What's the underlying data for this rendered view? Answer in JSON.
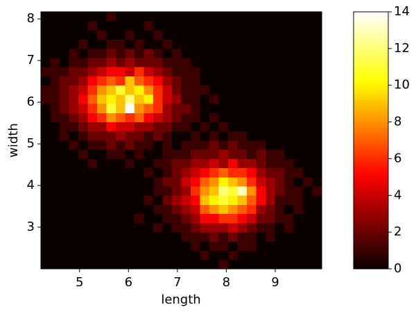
{
  "chart_data": {
    "type": "hist2d",
    "x_label": "length",
    "y_label": "width",
    "xlim": [
      4.21,
      9.95
    ],
    "ylim": [
      2.0,
      8.17
    ],
    "xticks": [
      5,
      6,
      7,
      8,
      9
    ],
    "yticks": [
      3,
      4,
      5,
      6,
      7,
      8
    ],
    "colormap": "hot",
    "colorbar": {
      "lim": [
        0,
        14
      ],
      "ticks": [
        0,
        2,
        4,
        6,
        8,
        10,
        12,
        14
      ]
    },
    "values": [
      [
        0,
        0,
        0,
        0,
        0,
        0,
        0,
        0,
        0,
        0,
        0,
        0,
        0,
        0,
        0,
        0,
        0,
        0,
        0,
        1,
        0,
        0,
        0,
        0,
        0,
        0,
        0,
        0,
        0,
        0
      ],
      [
        0,
        0,
        0,
        0,
        0,
        0,
        0,
        0,
        0,
        0,
        0,
        0,
        0,
        0,
        0,
        0,
        0,
        1,
        0,
        0,
        1,
        0,
        0,
        0,
        0,
        0,
        0,
        0,
        0,
        0
      ],
      [
        0,
        0,
        0,
        0,
        0,
        0,
        0,
        0,
        0,
        0,
        0,
        0,
        0,
        0,
        0,
        0,
        1,
        0,
        1,
        1,
        0,
        1,
        1,
        0,
        0,
        0,
        0,
        0,
        0,
        0
      ],
      [
        0,
        0,
        0,
        0,
        0,
        0,
        0,
        0,
        0,
        0,
        0,
        0,
        0,
        0,
        0,
        1,
        1,
        1,
        2,
        1,
        2,
        1,
        1,
        0,
        1,
        0,
        0,
        0,
        0,
        0
      ],
      [
        0,
        0,
        0,
        0,
        0,
        0,
        0,
        0,
        0,
        0,
        0,
        0,
        1,
        0,
        1,
        1,
        2,
        3,
        3,
        3,
        4,
        3,
        2,
        1,
        1,
        0,
        1,
        0,
        0,
        0
      ],
      [
        0,
        0,
        0,
        0,
        0,
        0,
        0,
        0,
        0,
        0,
        1,
        0,
        0,
        1,
        1,
        2,
        3,
        5,
        5,
        6,
        6,
        5,
        4,
        2,
        2,
        1,
        1,
        0,
        0,
        0
      ],
      [
        0,
        0,
        0,
        0,
        0,
        0,
        0,
        0,
        0,
        0,
        0,
        0,
        1,
        1,
        2,
        3,
        4,
        7,
        8,
        9,
        8,
        7,
        6,
        3,
        2,
        1,
        0,
        1,
        0,
        0
      ],
      [
        0,
        0,
        0,
        0,
        0,
        0,
        0,
        0,
        0,
        0,
        0,
        1,
        0,
        2,
        3,
        4,
        5,
        9,
        10,
        11,
        10,
        9,
        7,
        5,
        3,
        1,
        1,
        1,
        0,
        0
      ],
      [
        0,
        0,
        0,
        0,
        0,
        0,
        0,
        0,
        0,
        0,
        0,
        0,
        1,
        1,
        2,
        3,
        6,
        8,
        9,
        12,
        11,
        13,
        8,
        5,
        3,
        2,
        1,
        1,
        0,
        1
      ],
      [
        0,
        0,
        0,
        0,
        0,
        0,
        0,
        0,
        0,
        0,
        0,
        0,
        1,
        2,
        2,
        4,
        5,
        7,
        8,
        10,
        9,
        8,
        6,
        4,
        3,
        2,
        1,
        0,
        1,
        0
      ],
      [
        0,
        0,
        0,
        0,
        0,
        0,
        0,
        0,
        0,
        0,
        0,
        1,
        0,
        1,
        2,
        3,
        4,
        5,
        6,
        7,
        6,
        6,
        5,
        3,
        2,
        2,
        1,
        1,
        0,
        0
      ],
      [
        0,
        0,
        0,
        0,
        0,
        1,
        0,
        0,
        0,
        1,
        0,
        0,
        1,
        1,
        2,
        2,
        3,
        3,
        4,
        3,
        5,
        3,
        3,
        2,
        1,
        1,
        1,
        0,
        0,
        0
      ],
      [
        0,
        0,
        0,
        0,
        1,
        0,
        0,
        1,
        1,
        0,
        1,
        0,
        0,
        1,
        1,
        1,
        2,
        2,
        2,
        3,
        2,
        2,
        1,
        2,
        1,
        1,
        0,
        0,
        0,
        0
      ],
      [
        0,
        0,
        0,
        1,
        0,
        1,
        1,
        2,
        1,
        2,
        1,
        1,
        0,
        1,
        0,
        1,
        1,
        1,
        2,
        1,
        2,
        1,
        1,
        1,
        0,
        0,
        0,
        0,
        0,
        0
      ],
      [
        0,
        0,
        1,
        0,
        1,
        2,
        2,
        2,
        3,
        2,
        2,
        1,
        2,
        1,
        0,
        0,
        1,
        0,
        1,
        0,
        1,
        1,
        0,
        0,
        0,
        0,
        0,
        0,
        0,
        0
      ],
      [
        0,
        0,
        1,
        1,
        2,
        3,
        3,
        5,
        4,
        4,
        3,
        3,
        2,
        2,
        1,
        1,
        0,
        1,
        0,
        1,
        0,
        0,
        0,
        0,
        0,
        0,
        0,
        0,
        0,
        0
      ],
      [
        0,
        1,
        1,
        2,
        3,
        5,
        6,
        8,
        7,
        6,
        7,
        5,
        4,
        3,
        2,
        1,
        1,
        0,
        1,
        0,
        0,
        0,
        0,
        0,
        0,
        0,
        0,
        0,
        0,
        0
      ],
      [
        0,
        1,
        2,
        3,
        4,
        6,
        8,
        11,
        9,
        14,
        8,
        7,
        6,
        3,
        2,
        2,
        1,
        0,
        0,
        0,
        0,
        0,
        0,
        0,
        0,
        0,
        0,
        0,
        0,
        0
      ],
      [
        1,
        1,
        2,
        3,
        5,
        7,
        9,
        10,
        9,
        12,
        9,
        10,
        6,
        4,
        3,
        1,
        1,
        0,
        1,
        0,
        0,
        0,
        0,
        0,
        0,
        0,
        0,
        0,
        0,
        0
      ],
      [
        1,
        1,
        2,
        3,
        4,
        6,
        8,
        9,
        11,
        9,
        10,
        8,
        6,
        4,
        2,
        1,
        1,
        1,
        0,
        0,
        0,
        0,
        0,
        0,
        0,
        0,
        0,
        0,
        0,
        0
      ],
      [
        0,
        1,
        2,
        2,
        3,
        5,
        6,
        7,
        6,
        9,
        7,
        6,
        5,
        3,
        2,
        1,
        1,
        0,
        0,
        0,
        0,
        0,
        0,
        0,
        0,
        0,
        0,
        0,
        0,
        0
      ],
      [
        1,
        1,
        1,
        2,
        2,
        3,
        4,
        5,
        5,
        4,
        6,
        4,
        3,
        2,
        1,
        1,
        1,
        0,
        0,
        0,
        0,
        0,
        0,
        0,
        0,
        0,
        0,
        0,
        0,
        0
      ],
      [
        0,
        1,
        0,
        1,
        1,
        2,
        2,
        3,
        2,
        3,
        2,
        2,
        2,
        1,
        1,
        1,
        0,
        0,
        0,
        0,
        0,
        0,
        0,
        0,
        0,
        0,
        0,
        0,
        0,
        0
      ],
      [
        0,
        0,
        0,
        1,
        0,
        1,
        1,
        2,
        1,
        2,
        1,
        2,
        1,
        0,
        1,
        0,
        0,
        0,
        0,
        0,
        0,
        0,
        0,
        0,
        0,
        0,
        0,
        0,
        0,
        0
      ],
      [
        0,
        0,
        0,
        0,
        1,
        0,
        0,
        1,
        1,
        0,
        1,
        0,
        0,
        1,
        0,
        0,
        0,
        0,
        0,
        0,
        0,
        0,
        0,
        0,
        0,
        0,
        0,
        0,
        0,
        0
      ],
      [
        0,
        0,
        0,
        0,
        0,
        0,
        1,
        0,
        0,
        1,
        0,
        0,
        1,
        0,
        0,
        0,
        0,
        0,
        0,
        0,
        0,
        0,
        0,
        0,
        0,
        0,
        0,
        0,
        0,
        0
      ],
      [
        0,
        0,
        0,
        0,
        0,
        1,
        0,
        0,
        0,
        0,
        0,
        1,
        0,
        0,
        0,
        0,
        0,
        0,
        0,
        0,
        0,
        0,
        0,
        0,
        0,
        0,
        0,
        0,
        0,
        0
      ],
      [
        0,
        0,
        0,
        0,
        0,
        0,
        0,
        1,
        0,
        0,
        0,
        0,
        0,
        0,
        0,
        0,
        0,
        0,
        0,
        0,
        0,
        0,
        0,
        0,
        0,
        0,
        0,
        0,
        0,
        0
      ]
    ]
  }
}
